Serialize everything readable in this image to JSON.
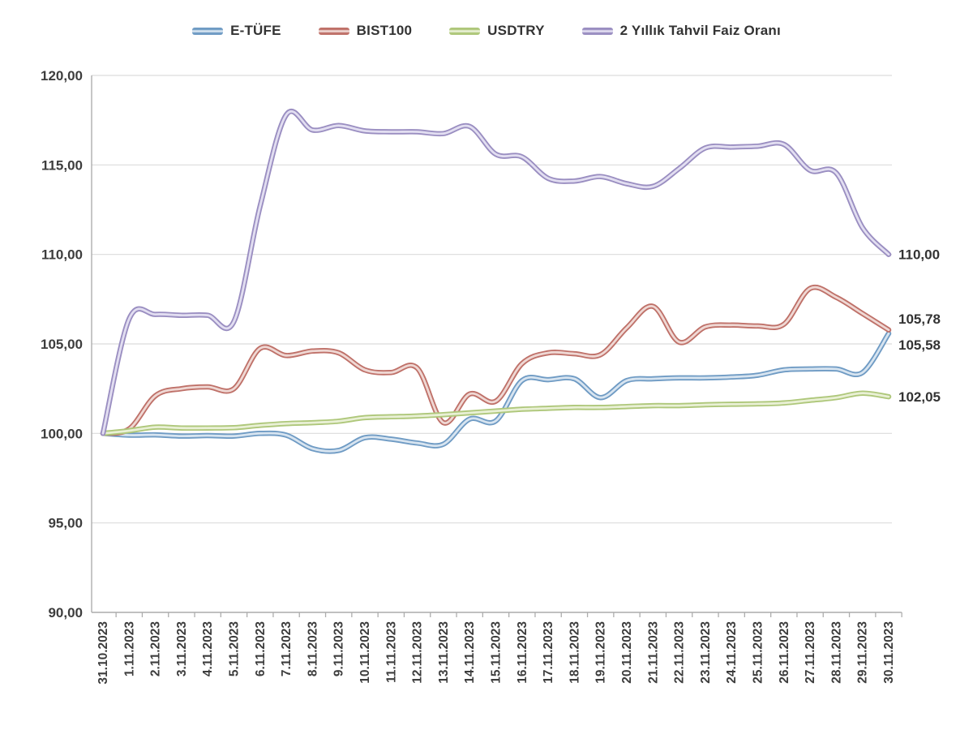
{
  "chart_data": {
    "type": "line",
    "title": "",
    "xlabel": "",
    "ylabel": "",
    "legend_position": "top",
    "grid": "horizontal",
    "ylim": [
      90,
      120
    ],
    "ytick_step": 5,
    "yticks": [
      120,
      115,
      110,
      105,
      100,
      95,
      90
    ],
    "ytick_labels": [
      "120,00",
      "115,00",
      "110,00",
      "105,00",
      "100,00",
      "95,00",
      "90,00"
    ],
    "x": [
      "31.10.2023",
      "1.11.2023",
      "2.11.2023",
      "3.11.2023",
      "4.11.2023",
      "5.11.2023",
      "6.11.2023",
      "7.11.2023",
      "8.11.2023",
      "9.11.2023",
      "10.11.2023",
      "11.11.2023",
      "12.11.2023",
      "13.11.2023",
      "14.11.2023",
      "15.11.2023",
      "16.11.2023",
      "17.11.2023",
      "18.11.2023",
      "19.11.2023",
      "20.11.2023",
      "21.11.2023",
      "22.11.2023",
      "23.11.2023",
      "24.11.2023",
      "25.11.2023",
      "26.11.2023",
      "27.11.2023",
      "28.11.2023",
      "29.11.2023",
      "30.11.2023"
    ],
    "series": [
      {
        "name": "E-TÜFE",
        "color": "#6F9BC4",
        "highlight": "#D7E4F0",
        "end_label": "105,58",
        "values": [
          100.0,
          99.9,
          99.92,
          99.85,
          99.88,
          99.85,
          100.0,
          99.9,
          99.15,
          99.05,
          99.76,
          99.68,
          99.46,
          99.4,
          100.8,
          100.7,
          102.95,
          103.0,
          103.05,
          102.0,
          102.95,
          103.05,
          103.1,
          103.1,
          103.15,
          103.25,
          103.55,
          103.6,
          103.6,
          103.4,
          105.58
        ]
      },
      {
        "name": "BIST100",
        "color": "#BF7169",
        "highlight": "#EFD8D4",
        "end_label": "105,78",
        "values": [
          100.0,
          100.25,
          102.1,
          102.5,
          102.6,
          102.5,
          104.75,
          104.35,
          104.6,
          104.5,
          103.55,
          103.4,
          103.65,
          100.6,
          102.2,
          101.8,
          103.9,
          104.5,
          104.45,
          104.4,
          105.9,
          107.1,
          105.1,
          105.95,
          106.05,
          106.0,
          106.1,
          108.1,
          107.6,
          106.7,
          105.78
        ]
      },
      {
        "name": "USDTRY",
        "color": "#AEC77A",
        "highlight": "#E9F0D5",
        "end_label": "102,05",
        "values": [
          100.0,
          100.15,
          100.35,
          100.3,
          100.3,
          100.32,
          100.45,
          100.55,
          100.6,
          100.68,
          100.88,
          100.93,
          100.97,
          101.05,
          101.15,
          101.25,
          101.35,
          101.4,
          101.45,
          101.45,
          101.5,
          101.55,
          101.55,
          101.6,
          101.63,
          101.65,
          101.7,
          101.85,
          102.0,
          102.25,
          102.05
        ]
      },
      {
        "name": "2 Yıllık Tahvil Faiz Oranı",
        "color": "#9A8EC1",
        "highlight": "#E2DEF1",
        "end_label": "110,00",
        "values": [
          100.0,
          106.4,
          106.65,
          106.6,
          106.6,
          106.25,
          112.7,
          117.8,
          116.95,
          117.2,
          116.9,
          116.85,
          116.85,
          116.75,
          117.15,
          115.6,
          115.45,
          114.25,
          114.1,
          114.35,
          113.95,
          113.8,
          114.8,
          115.95,
          116.0,
          116.05,
          116.15,
          114.7,
          114.55,
          111.5,
          110.0
        ]
      }
    ]
  },
  "style": {
    "grid_color": "#DCDCDC",
    "axis_color": "#ADADAD",
    "tick_label_color": "#3D3D3D",
    "end_label_color": "#333333"
  }
}
